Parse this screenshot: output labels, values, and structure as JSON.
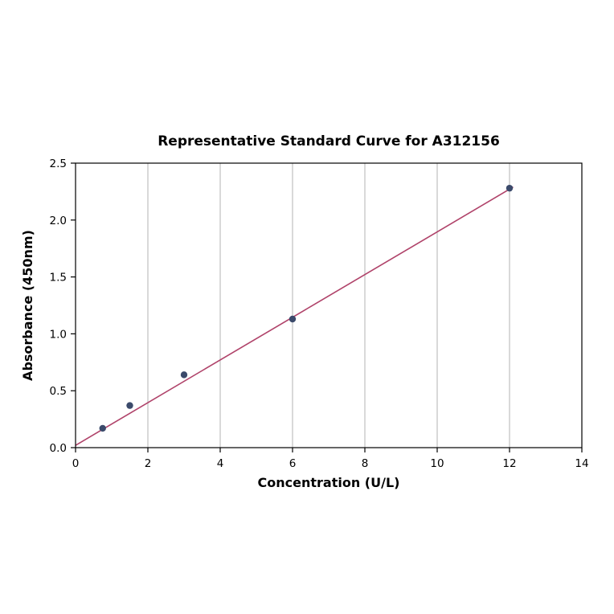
{
  "page": {
    "background": "#ffffff"
  },
  "chart_data": {
    "type": "scatter",
    "title": "Representative Standard Curve for A312156",
    "xlabel": "Concentration (U/L)",
    "ylabel": "Absorbance (450nm)",
    "xlim": [
      0,
      14
    ],
    "ylim": [
      0,
      2.5
    ],
    "x_ticks": [
      0,
      2,
      4,
      6,
      8,
      10,
      12,
      14
    ],
    "y_ticks": [
      0.0,
      0.5,
      1.0,
      1.5,
      2.0,
      2.5
    ],
    "grid": "vertical",
    "legend": "none",
    "points": [
      {
        "x": 0.75,
        "y": 0.17
      },
      {
        "x": 1.5,
        "y": 0.37
      },
      {
        "x": 3,
        "y": 0.64
      },
      {
        "x": 6,
        "y": 1.13
      },
      {
        "x": 12,
        "y": 2.28
      }
    ],
    "trendline": {
      "x1": 0,
      "y1": 0.02,
      "x2": 12.1,
      "y2": 2.29
    },
    "colors": {
      "point": "#3b4a6b",
      "line": "#b0436a",
      "grid": "#b3b3b3",
      "axis": "#000000"
    }
  }
}
